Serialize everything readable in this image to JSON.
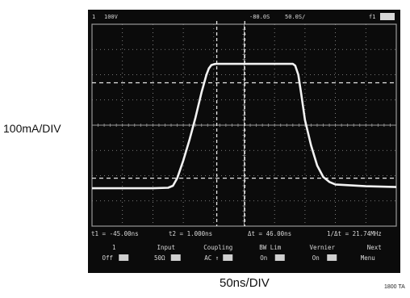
{
  "y_axis_label": "100mA/DIV",
  "x_axis_label": "50ns/DIV",
  "figure_id": "1800 TA",
  "scope": {
    "top_bar": {
      "channel": "1",
      "volts_per_div": "100V",
      "delay": "-80.0S",
      "timebase": "50.0S/",
      "trigger": "f1"
    },
    "cursor_readout": {
      "t1": "t1 = -45.00ns",
      "t2": "t2 = 1.000ns",
      "delta_t": "Δt = 46.00ns",
      "inverse_delta_t": "1/Δt = 21.74MHz"
    },
    "softkeys": [
      {
        "title": "1",
        "value": "Off"
      },
      {
        "title": "Input",
        "value": "50Ω"
      },
      {
        "title": "Coupling",
        "value": "AC ↑"
      },
      {
        "title": "BW Lim",
        "value": "On"
      },
      {
        "title": "Vernier",
        "value": "On"
      },
      {
        "title": "Next",
        "value": "Menu"
      }
    ]
  },
  "colors": {
    "screen": "#0b0b0b",
    "trace": "#f2f2f2",
    "grid": "#9a9a9a"
  },
  "chart_data": {
    "type": "line",
    "xlabel": "50ns/DIV",
    "ylabel": "100mA/DIV",
    "x_unit": "ns",
    "y_unit": "mA",
    "xlim": [
      -250,
      250
    ],
    "ylim": [
      -400,
      400
    ],
    "grid": true,
    "series": [
      {
        "x": [
          -250,
          -200,
          -150,
          -125,
          -117,
          -110,
          -100,
          -90,
          -80,
          -70,
          -62,
          -58,
          -54,
          -49,
          -46,
          -40,
          0,
          60,
          80,
          84,
          89,
          94,
          100,
          110,
          120,
          130,
          140,
          150,
          200,
          250
        ],
        "y": [
          -250,
          -250,
          -250,
          -248,
          -240,
          -210,
          -140,
          -60,
          30,
          130,
          200,
          225,
          238,
          242,
          243,
          243,
          243,
          243,
          243,
          236,
          200,
          120,
          20,
          -80,
          -160,
          -205,
          -225,
          -235,
          -242,
          -245
        ]
      }
    ],
    "cursors": [
      {
        "label": "t1",
        "x": -45
      },
      {
        "label": "t2",
        "x": 1
      }
    ],
    "reference_levels": [
      {
        "y": 168
      },
      {
        "y": -210
      }
    ]
  }
}
